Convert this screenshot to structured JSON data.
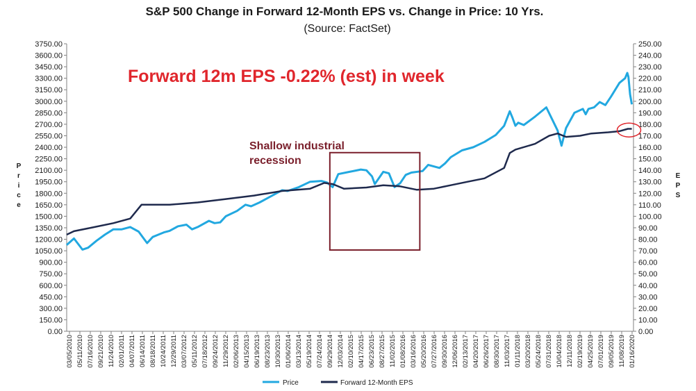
{
  "chart_data": {
    "type": "line",
    "title": "S&P 500 Change in Forward 12-Month EPS vs. Change in Price: 10 Yrs.",
    "subtitle": "(Source: FactSet)",
    "ylabel_left": "Price",
    "ylabel_right": "EPS",
    "ylim_left": [
      0,
      3750
    ],
    "ylim_right": [
      0,
      250
    ],
    "yticks_left": [
      "3750.00",
      "3600.00",
      "3450.00",
      "3300.00",
      "3150.00",
      "3000.00",
      "2850.00",
      "2700.00",
      "2550.00",
      "2400.00",
      "2250.00",
      "2100.00",
      "1950.00",
      "1800.00",
      "1650.00",
      "1500.00",
      "1350.00",
      "1200.00",
      "1050.00",
      "900.00",
      "750.00",
      "600.00",
      "450.00",
      "300.00",
      "150.00",
      "0.00"
    ],
    "yticks_right": [
      "250.00",
      "240.00",
      "230.00",
      "220.00",
      "210.00",
      "200.00",
      "190.00",
      "180.00",
      "170.00",
      "160.00",
      "150.00",
      "140.00",
      "130.00",
      "120.00",
      "110.00",
      "100.00",
      "90.00",
      "80.00",
      "70.00",
      "60.00",
      "50.00",
      "40.00",
      "30.00",
      "20.00",
      "10.00",
      "0.00"
    ],
    "x_range": [
      2010.17,
      2020.25
    ],
    "xtick_labels": [
      "03/05/2010",
      "05/11/2010",
      "07/16/2010",
      "09/21/2010",
      "11/24/2010",
      "02/01/2011",
      "04/07/2011",
      "06/14/2011",
      "08/18/2011",
      "10/24/2011",
      "12/29/2011",
      "03/07/2012",
      "05/11/2012",
      "07/18/2012",
      "09/24/2012",
      "11/29/2012",
      "02/06/2013",
      "04/15/2013",
      "06/19/2013",
      "08/23/2013",
      "10/30/2013",
      "01/06/2014",
      "03/13/2014",
      "05/19/2014",
      "07/24/2014",
      "09/29/2014",
      "12/03/2014",
      "02/10/2015",
      "04/17/2015",
      "06/23/2015",
      "08/27/2015",
      "11/02/2015",
      "01/08/2016",
      "03/16/2016",
      "05/20/2016",
      "07/27/2016",
      "09/30/2016",
      "12/06/2016",
      "02/13/2017",
      "04/20/2017",
      "06/26/2017",
      "08/30/2017",
      "11/03/2017",
      "01/11/2018",
      "03/20/2018",
      "05/24/2018",
      "07/31/2018",
      "10/04/2018",
      "12/11/2018",
      "02/19/2019",
      "04/25/2019",
      "07/01/2019",
      "09/05/2019",
      "11/08/2019",
      "01/16/2020"
    ],
    "series": [
      {
        "name": "Price",
        "color": "#22a8e0",
        "axis": "left",
        "x": [
          2010.17,
          2010.3,
          2010.45,
          2010.55,
          2010.7,
          2010.85,
          2011.0,
          2011.15,
          2011.3,
          2011.45,
          2011.55,
          2011.6,
          2011.7,
          2011.8,
          2011.9,
          2012.0,
          2012.15,
          2012.3,
          2012.4,
          2012.5,
          2012.7,
          2012.8,
          2012.9,
          2013.0,
          2013.2,
          2013.35,
          2013.45,
          2013.6,
          2013.8,
          2014.0,
          2014.1,
          2014.3,
          2014.5,
          2014.7,
          2014.8,
          2014.9,
          2015.0,
          2015.2,
          2015.4,
          2015.5,
          2015.6,
          2015.65,
          2015.8,
          2015.9,
          2016.0,
          2016.1,
          2016.2,
          2016.3,
          2016.5,
          2016.6,
          2016.8,
          2016.9,
          2017.0,
          2017.2,
          2017.4,
          2017.6,
          2017.8,
          2017.95,
          2018.05,
          2018.1,
          2018.15,
          2018.2,
          2018.3,
          2018.5,
          2018.7,
          2018.8,
          2018.9,
          2018.97,
          2019.05,
          2019.2,
          2019.35,
          2019.4,
          2019.45,
          2019.55,
          2019.65,
          2019.75,
          2019.85,
          2020.0,
          2020.1,
          2020.14,
          2020.16,
          2020.19,
          2020.22
        ],
        "values": [
          1125,
          1210,
          1065,
          1090,
          1180,
          1260,
          1330,
          1330,
          1360,
          1300,
          1200,
          1150,
          1230,
          1260,
          1290,
          1310,
          1370,
          1390,
          1330,
          1360,
          1440,
          1410,
          1420,
          1500,
          1570,
          1650,
          1630,
          1680,
          1760,
          1840,
          1830,
          1880,
          1950,
          1960,
          1940,
          1880,
          2050,
          2080,
          2110,
          2100,
          2020,
          1920,
          2080,
          2060,
          1880,
          1930,
          2040,
          2070,
          2090,
          2170,
          2130,
          2190,
          2270,
          2360,
          2400,
          2470,
          2560,
          2680,
          2870,
          2780,
          2680,
          2720,
          2690,
          2800,
          2920,
          2770,
          2620,
          2420,
          2650,
          2850,
          2900,
          2830,
          2900,
          2920,
          2990,
          2950,
          3060,
          3240,
          3300,
          3370,
          3320,
          3090,
          2960
        ]
      },
      {
        "name": "Forward 12-Month EPS",
        "color": "#1f2a4d",
        "axis": "right",
        "x": [
          2010.17,
          2010.3,
          2010.6,
          2011.0,
          2011.3,
          2011.5,
          2011.8,
          2012.0,
          2012.5,
          2013.0,
          2013.5,
          2014.0,
          2014.5,
          2014.75,
          2014.9,
          2015.1,
          2015.5,
          2015.8,
          2016.1,
          2016.4,
          2016.7,
          2017.0,
          2017.3,
          2017.6,
          2017.95,
          2018.05,
          2018.15,
          2018.5,
          2018.75,
          2018.9,
          2019.05,
          2019.3,
          2019.5,
          2019.8,
          2020.0,
          2020.15,
          2020.22
        ],
        "values": [
          84,
          87,
          90,
          94,
          98,
          110,
          110,
          110,
          112,
          115,
          118,
          122,
          124,
          129,
          128,
          124,
          125,
          127,
          126,
          123,
          124,
          127,
          130,
          133,
          142,
          155,
          158,
          163,
          170,
          172,
          169,
          170,
          172,
          173,
          174,
          176,
          176
        ]
      }
    ],
    "legend": [
      "Price",
      "Forward 12-Month EPS"
    ],
    "legend_position": "bottom-center",
    "annotations": {
      "headline": "Forward 12m EPS -0.22% (est) in week",
      "recession_label_1": "Shallow industrial",
      "recession_label_2": "recession",
      "recession_range": {
        "x_start": 2014.85,
        "x_end": 2016.45,
        "y_start_left": 1060,
        "y_end_left": 2330
      },
      "circle_marker": {
        "x": 2020.17,
        "y_right": 175
      }
    },
    "colors": {
      "price": "#22a8e0",
      "eps": "#1f2a4d",
      "headline": "#e0262c",
      "recession_box": "#7a1f2b",
      "circle": "#e0262c",
      "axis": "#808080"
    }
  }
}
